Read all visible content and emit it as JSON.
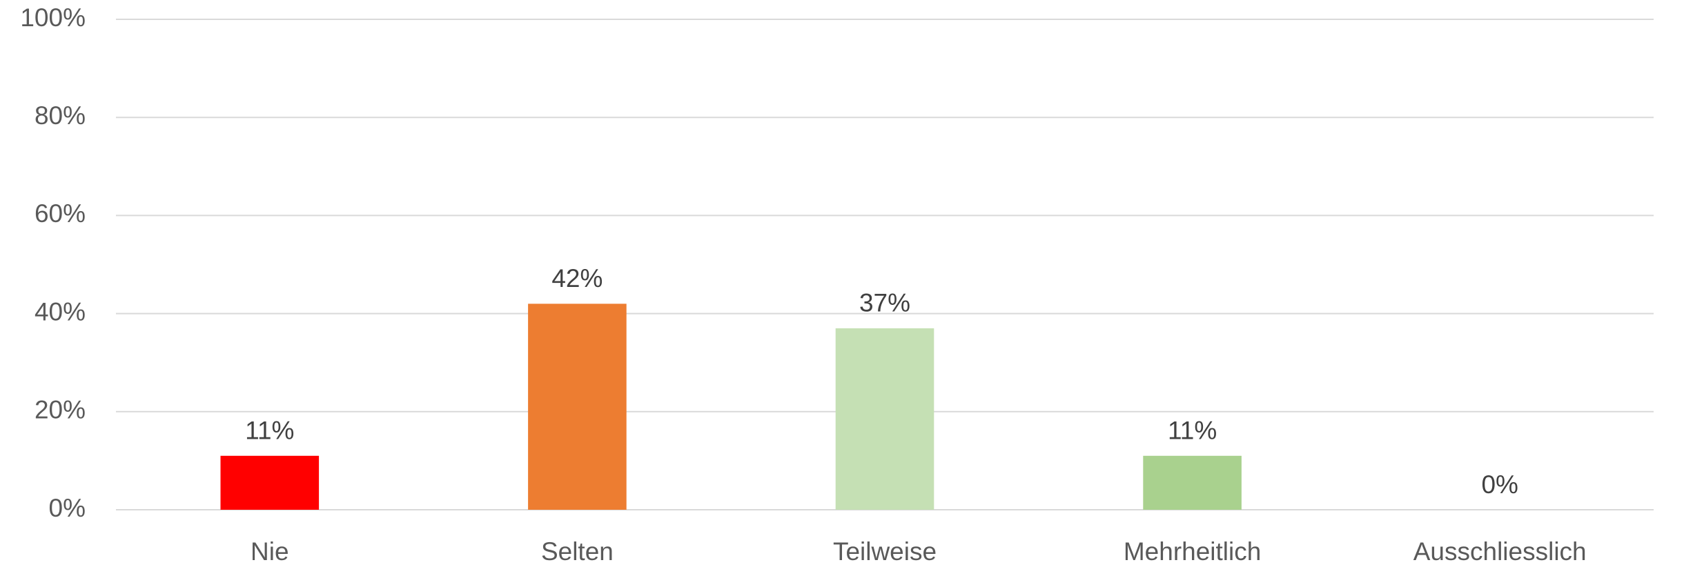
{
  "chart_data": {
    "type": "bar",
    "categories": [
      "Nie",
      "Selten",
      "Teilweise",
      "Mehrheitlich",
      "Ausschliesslich"
    ],
    "values": [
      11,
      42,
      37,
      11,
      0
    ],
    "value_labels": [
      "11%",
      "42%",
      "37%",
      "11%",
      "0%"
    ],
    "colors": [
      "#ff0000",
      "#ed7d31",
      "#c5e0b4",
      "#a9d18e",
      "#70ad47"
    ],
    "ylim": [
      0,
      100
    ],
    "yticks": [
      {
        "value": 0,
        "label": "0%"
      },
      {
        "value": 20,
        "label": "20%"
      },
      {
        "value": 40,
        "label": "40%"
      },
      {
        "value": 60,
        "label": "60%"
      },
      {
        "value": 80,
        "label": "80%"
      },
      {
        "value": 100,
        "label": "100%"
      }
    ],
    "grid": true
  }
}
